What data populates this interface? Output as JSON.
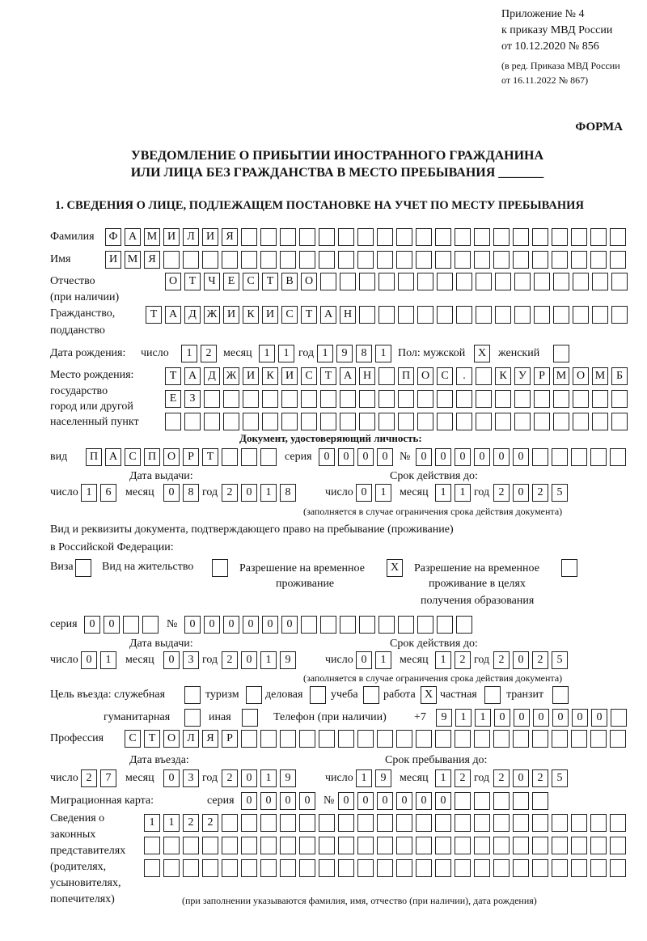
{
  "header": {
    "appendix": [
      "Приложение № 4",
      "к приказу МВД России",
      "от 10.12.2020 № 856"
    ],
    "edition": [
      "(в ред. Приказа МВД России",
      "от 16.11.2022 № 867)"
    ],
    "form_label": "ФОРМА",
    "title_line1": "УВЕДОМЛЕНИЕ О ПРИБЫТИИ ИНОСТРАННОГО ГРАЖДАНИНА",
    "title_line2": "ИЛИ ЛИЦА БЕЗ ГРАЖДАНСТВА В МЕСТО ПРЕБЫВАНИЯ _______",
    "section1": "1. СВЕДЕНИЯ О ЛИЦЕ, ПОДЛЕЖАЩЕМ ПОСТАНОВКЕ НА УЧЕТ ПО МЕСТУ ПРЕБЫВАНИЯ"
  },
  "person": {
    "surname_label": "Фамилия",
    "surname": "ФАМИЛИЯ",
    "name_label": "Имя",
    "name": "ИМЯ",
    "patronymic_label": [
      "Отчество",
      "(при наличии)"
    ],
    "patronymic": "ОТЧЕСТВО",
    "citizenship_label": [
      "Гражданство,",
      "подданство"
    ],
    "citizenship": "ТАДЖИКИСТАН",
    "birth_label": "Дата рождения:",
    "day_label": "число",
    "month_label": "месяц",
    "year_label": "год",
    "birth_day": "12",
    "birth_month": "11",
    "birth_year": "1981",
    "sex_label": "Пол: мужской",
    "female_label": "женский",
    "male": "X",
    "female": " ",
    "birthplace_label": [
      "Место рождения:",
      "государство",
      "город или другой",
      "населенный пункт"
    ],
    "birthplace": [
      "ТАДЖИКИСТАН ПОС. КУРМОМБ",
      "ЕЗ",
      ""
    ]
  },
  "id_document": {
    "heading": "Документ, удостоверяющий личность:",
    "type_label": "вид",
    "type": "ПАСПОРТ",
    "series_label": "серия",
    "series": "0000",
    "number_label": "№",
    "number": "000000",
    "issue_label": "Дата выдачи:",
    "issue_day": "16",
    "issue_month": "08",
    "issue_year": "2018",
    "valid_label": "Срок действия до:",
    "valid_day": "01",
    "valid_month": "11",
    "valid_year": "2025",
    "note": "(заполняется в случае ограничения срока действия документа)"
  },
  "residence_document": {
    "heading1": "Вид и реквизиты документа, подтверждающего право на пребывание (проживание)",
    "heading2": "в Российской Федерации:",
    "visa_label": "Виза",
    "visa": " ",
    "rp_label": "Вид на жительство",
    "rp": " ",
    "trp_label": [
      "Разрешение на временное",
      "проживание"
    ],
    "trp": "X",
    "trp_edu_label": [
      "Разрешение на временное",
      "проживание в целях",
      "получения образования"
    ],
    "trp_edu": " ",
    "series_label": "серия",
    "series": "00",
    "number_label": "№",
    "number": "000000",
    "issue_label": "Дата выдачи:",
    "issue_day": "01",
    "issue_month": "03",
    "issue_year": "2019",
    "valid_label": "Срок действия до:",
    "valid_day": "01",
    "valid_month": "12",
    "valid_year": "2025",
    "note": "(заполняется в случае ограничения срока действия документа)"
  },
  "purpose": {
    "label": "Цель въезда: служебная",
    "official": " ",
    "tourism_label": "туризм",
    "tourism": " ",
    "business_label": "деловая",
    "business": " ",
    "study_label": "учеба",
    "study": " ",
    "work_label": "работа",
    "work": "X",
    "private_label": "частная",
    "private": " ",
    "transit_label": "транзит",
    "transit": " ",
    "humanitarian_label": "гуманитарная",
    "humanitarian": " ",
    "other_label": "иная",
    "other": " "
  },
  "phone": {
    "label": "Телефон (при наличии)",
    "prefix": "+7",
    "value": "911000000"
  },
  "profession": {
    "label": "Профессия",
    "value": "СТОЛЯР"
  },
  "entry": {
    "entry_label": "Дата въезда:",
    "entry_day": "27",
    "entry_month": "03",
    "entry_year": "2019",
    "stay_label": "Срок пребывания до:",
    "stay_day": "19",
    "stay_month": "12",
    "stay_year": "2025"
  },
  "migration_card": {
    "label": "Миграционная карта:",
    "series_label": "серия",
    "series": "0000",
    "number_label": "№",
    "number": "000000"
  },
  "representatives": {
    "label": [
      "Сведения о",
      "законных",
      "представителях",
      "(родителях,",
      "усыновителях,",
      "попечителях)"
    ],
    "rows": [
      "1122",
      "",
      ""
    ],
    "note": "(при заполнении указываются фамилия, имя, отчество (при наличии), дата рождения)"
  },
  "labels": {
    "day": "число",
    "month": "месяц",
    "year": "год"
  }
}
